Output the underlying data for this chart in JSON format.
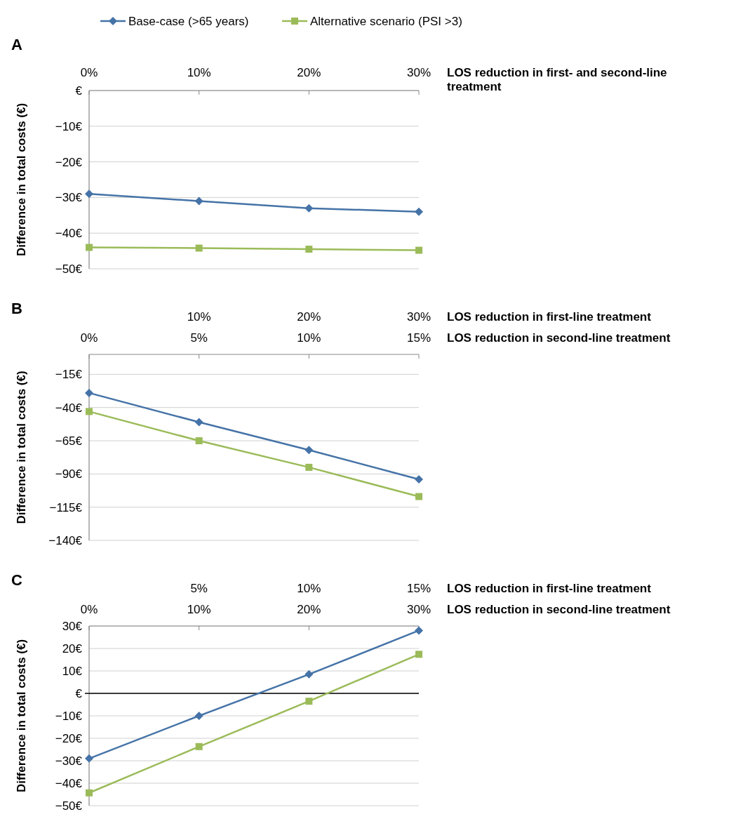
{
  "chart_data": [
    {
      "type": "line",
      "title": "A",
      "xlabel": "LOS reduction in first- and second-line treatment",
      "ylabel": "Difference in total costs (€)",
      "x": [
        0,
        10,
        20,
        30
      ],
      "xlim": [
        0,
        30
      ],
      "xticks": [
        {
          "value": 0,
          "label": "0%"
        },
        {
          "value": 10,
          "label": "10%"
        },
        {
          "value": 20,
          "label": "20%"
        },
        {
          "value": 30,
          "label": "30%"
        }
      ],
      "ylim": [
        -50,
        0
      ],
      "yticks": [
        {
          "value": 0,
          "label": "€"
        },
        {
          "value": -10,
          "label": "−10€"
        },
        {
          "value": -20,
          "label": "−20€"
        },
        {
          "value": -30,
          "label": "−30€"
        },
        {
          "value": -40,
          "label": "−40€"
        },
        {
          "value": -50,
          "label": "−50€"
        }
      ],
      "grid": "y",
      "legend": "top",
      "series": [
        {
          "name": "Base-case (>65 years)",
          "color": "#4573a7",
          "marker": "diamond",
          "values": [
            -29,
            -31,
            -33,
            -34
          ]
        },
        {
          "name": "Alternative scenario (PSI >3)",
          "color": "#9bbb59",
          "marker": "square",
          "values": [
            -44,
            -44.2,
            -44.5,
            -44.8
          ]
        }
      ]
    },
    {
      "type": "line",
      "title": "B",
      "xlabel": "LOS reduction in first-line treatment",
      "x2label": "LOS reduction in second-line treatment",
      "ylabel": "Difference in total costs (€)",
      "x": [
        0,
        10,
        20,
        30
      ],
      "xlim": [
        0,
        30
      ],
      "xticks": [
        {
          "value": 0,
          "label": null
        },
        {
          "value": 10,
          "label": "10%"
        },
        {
          "value": 20,
          "label": "20%"
        },
        {
          "value": 30,
          "label": "30%"
        }
      ],
      "x2lim": [
        0,
        15
      ],
      "x2ticks": [
        {
          "value": 0,
          "label": "0%"
        },
        {
          "value": 5,
          "label": "5%"
        },
        {
          "value": 10,
          "label": "10%"
        },
        {
          "value": 15,
          "label": "15%"
        }
      ],
      "ylim": [
        -140,
        0
      ],
      "yticks": [
        {
          "value": -15,
          "label": "−15€"
        },
        {
          "value": -40,
          "label": "−40€"
        },
        {
          "value": -65,
          "label": "−65€"
        },
        {
          "value": -90,
          "label": "−90€"
        },
        {
          "value": -115,
          "label": "−115€"
        },
        {
          "value": -140,
          "label": "−140€"
        }
      ],
      "grid": "y",
      "legend": false,
      "series": [
        {
          "color": "#4573a7",
          "marker": "diamond",
          "values": [
            -29,
            -51,
            -72,
            -94
          ]
        },
        {
          "color": "#9bbb59",
          "marker": "square",
          "values": [
            -43,
            -65,
            -85,
            -107
          ]
        }
      ]
    },
    {
      "type": "line",
      "title": "C",
      "xlabel": "LOS reduction in first-line treatment",
      "x2label": "LOS reduction in second-line treatment",
      "ylabel": "Difference in total costs (€)",
      "x": [
        0,
        5,
        10,
        15
      ],
      "xlim": [
        0,
        15
      ],
      "xticks": [
        {
          "value": 0,
          "label": null
        },
        {
          "value": 5,
          "label": "5%"
        },
        {
          "value": 10,
          "label": "10%"
        },
        {
          "value": 15,
          "label": "15%"
        }
      ],
      "x2lim": [
        0,
        30
      ],
      "x2ticks": [
        {
          "value": 0,
          "label": "0%"
        },
        {
          "value": 10,
          "label": "10%"
        },
        {
          "value": 20,
          "label": "20%"
        },
        {
          "value": 30,
          "label": "30%"
        }
      ],
      "ylim": [
        -50,
        30
      ],
      "yticks": [
        {
          "value": 30,
          "label": "30€"
        },
        {
          "value": 20,
          "label": "20€"
        },
        {
          "value": 10,
          "label": "10€"
        },
        {
          "value": 0,
          "label": "€"
        },
        {
          "value": -10,
          "label": "−10€"
        },
        {
          "value": -20,
          "label": "−20€"
        },
        {
          "value": -30,
          "label": "−30€"
        },
        {
          "value": -40,
          "label": "−40€"
        },
        {
          "value": -50,
          "label": "−50€"
        }
      ],
      "grid": "y",
      "legend": false,
      "ref_lines": [
        {
          "axis": "y",
          "value": 0,
          "color": "#000000"
        }
      ],
      "series": [
        {
          "color": "#4573a7",
          "marker": "diamond",
          "values": [
            -29,
            -10,
            8.5,
            28
          ]
        },
        {
          "color": "#9bbb59",
          "marker": "square",
          "values": [
            -44.3,
            -23.7,
            -3.5,
            17.4
          ]
        }
      ]
    }
  ]
}
